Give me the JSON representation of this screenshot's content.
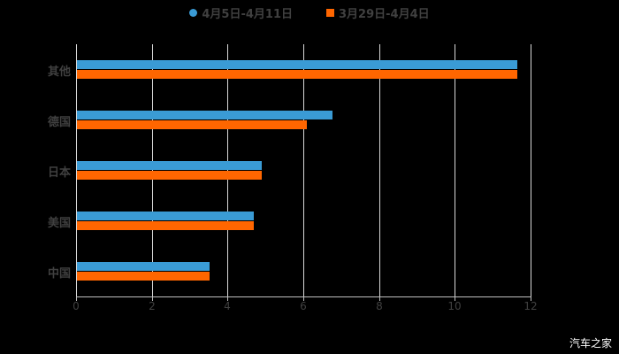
{
  "chart_data": {
    "type": "bar",
    "orientation": "horizontal",
    "title": "",
    "categories": [
      "其他",
      "德国",
      "日本",
      "美国",
      "中国"
    ],
    "series": [
      {
        "name": "4月5日-4月11日",
        "color": "#3a9bd5",
        "values": [
          11.63,
          6.75,
          4.88,
          4.67,
          3.5
        ]
      },
      {
        "name": "3月29日-4月4日",
        "color": "#ff6600",
        "values": [
          11.63,
          6.07,
          4.88,
          4.67,
          3.5
        ]
      }
    ],
    "xlabel": "",
    "ylabel": "",
    "xlim": [
      0,
      12
    ],
    "xticks": [
      "0",
      "2",
      "4",
      "6",
      "8",
      "10",
      "12"
    ],
    "grid": true,
    "legend_position": "top"
  },
  "legend": {
    "items": [
      {
        "label": "4月5日-4月11日",
        "color": "#3a9bd5"
      },
      {
        "label": "3月29日-4月4日",
        "color": "#ff6600"
      }
    ]
  },
  "watermark": "汽车之家"
}
